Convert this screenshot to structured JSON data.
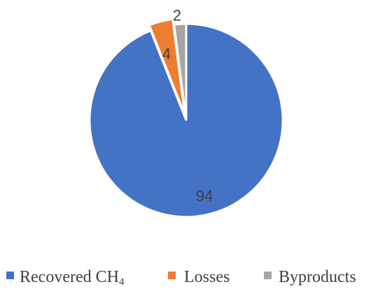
{
  "chart_data": {
    "type": "pie",
    "title": "",
    "series": [
      {
        "categories": [
          "Recovered CH4",
          "Losses",
          "Byproducts"
        ],
        "values": [
          94,
          4,
          2
        ],
        "labels": [
          "94",
          "4",
          "2"
        ],
        "colors": [
          "#4472C4",
          "#ED7D31",
          "#A5A5A5"
        ]
      }
    ],
    "legend": {
      "placement": "bottom",
      "items": [
        {
          "text": "Recovered CH",
          "subscript": "4",
          "color": "#4472C4"
        },
        {
          "text": "Losses",
          "color": "#ED7D31"
        },
        {
          "text": "Byproducts",
          "color": "#A5A5A5"
        }
      ]
    },
    "explode_index": 1
  }
}
